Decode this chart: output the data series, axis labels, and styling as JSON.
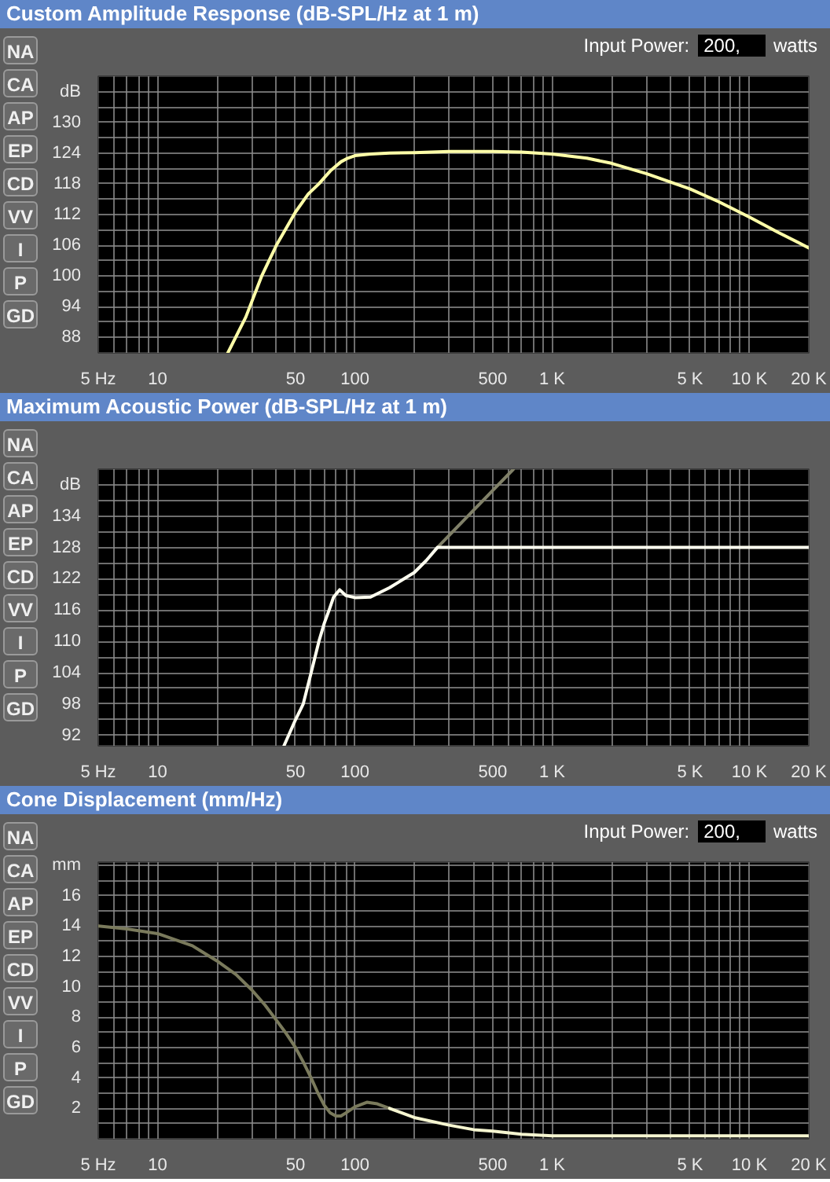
{
  "chart_data": [
    {
      "type": "line",
      "title": "Custom Amplitude Response (dB-SPL/Hz at 1 m)",
      "annotations": [
        "NA",
        "CA",
        "AP",
        "EP",
        "CD",
        "VV",
        "I",
        "P",
        "GD",
        "Input Power:",
        "200,",
        "watts"
      ],
      "series": [
        {
          "color": "#ffffa8",
          "x": [
            22.7,
            28,
            33.7,
            40,
            50,
            58,
            65.7,
            75,
            85,
            92,
            100,
            120,
            150,
            200,
            300,
            500,
            700,
            1000,
            1500,
            2000,
            3000,
            5000,
            7000,
            10000,
            14000,
            20000
          ],
          "values": [
            85,
            92,
            100,
            106,
            112.5,
            116,
            118,
            120.5,
            122.3,
            123,
            123.5,
            123.8,
            124,
            124.1,
            124.3,
            124.3,
            124.2,
            123.8,
            123,
            122,
            120,
            117,
            114.5,
            111.5,
            108.5,
            105.5
          ]
        }
      ],
      "xlim": [
        5,
        20000
      ],
      "ylim": [
        85,
        139
      ],
      "xticks": [
        {
          "value": 5,
          "label": "5 Hz"
        },
        {
          "value": 6,
          "label": null
        },
        {
          "value": 7,
          "label": null
        },
        {
          "value": 8,
          "label": null
        },
        {
          "value": 9,
          "label": null
        },
        10,
        {
          "value": 20,
          "label": null
        },
        {
          "value": 30,
          "label": null
        },
        {
          "value": 40,
          "label": null
        },
        50,
        {
          "value": 60,
          "label": null
        },
        {
          "value": 70,
          "label": null
        },
        {
          "value": 80,
          "label": null
        },
        {
          "value": 90,
          "label": null
        },
        100,
        {
          "value": 200,
          "label": null
        },
        {
          "value": 300,
          "label": null
        },
        {
          "value": 400,
          "label": null
        },
        500,
        {
          "value": 600,
          "label": null
        },
        {
          "value": 700,
          "label": null
        },
        {
          "value": 800,
          "label": null
        },
        {
          "value": 900,
          "label": null
        },
        {
          "value": 1000,
          "label": "1 K"
        },
        {
          "value": 2000,
          "label": null
        },
        {
          "value": 3000,
          "label": null
        },
        {
          "value": 4000,
          "label": null
        },
        {
          "value": 5000,
          "label": "5 K"
        },
        {
          "value": 6000,
          "label": null
        },
        {
          "value": 7000,
          "label": null
        },
        {
          "value": 8000,
          "label": null
        },
        {
          "value": 9000,
          "label": null
        },
        {
          "value": 10000,
          "label": "10 K"
        },
        {
          "value": 20000,
          "label": "20 K"
        }
      ],
      "yticks": [
        88,
        {
          "value": 91,
          "label": null
        },
        94,
        {
          "value": 97,
          "label": null
        },
        100,
        {
          "value": 103,
          "label": null
        },
        106,
        {
          "value": 109,
          "label": null
        },
        112,
        {
          "value": 115,
          "label": null
        },
        118,
        {
          "value": 121,
          "label": null
        },
        124,
        {
          "value": 127,
          "label": null
        },
        130,
        {
          "value": 133,
          "label": null
        },
        {
          "value": 136,
          "label": "dB"
        }
      ],
      "log": "x",
      "grid": true
    },
    {
      "type": "line",
      "title": "Maximum Acoustic Power (dB-SPL/Hz at 1 m)",
      "annotations": [
        "NA",
        "CA",
        "AP",
        "EP",
        "CD",
        "VV",
        "I",
        "P",
        "GD"
      ],
      "series": [
        {
          "color": "#808068",
          "x": [
            262,
            636
          ],
          "values": [
            128,
            143
          ]
        },
        {
          "color": "#fffff0",
          "x": [
            43.7,
            50,
            54.7,
            60,
            65.7,
            70,
            74,
            78,
            83.7,
            90,
            100,
            120,
            150,
            200,
            230,
            262,
            500,
            1000,
            5000,
            20000
          ],
          "values": [
            90,
            95,
            98,
            104,
            110,
            113.5,
            116,
            118.5,
            119.9,
            118.8,
            118.4,
            118.5,
            120.3,
            123.2,
            125.5,
            128,
            128,
            128,
            128,
            128
          ]
        }
      ],
      "xlim": [
        5,
        20000
      ],
      "ylim": [
        90,
        143
      ],
      "xticks": [
        {
          "value": 5,
          "label": "5 Hz"
        },
        {
          "value": 6,
          "label": null
        },
        {
          "value": 7,
          "label": null
        },
        {
          "value": 8,
          "label": null
        },
        {
          "value": 9,
          "label": null
        },
        10,
        {
          "value": 20,
          "label": null
        },
        {
          "value": 30,
          "label": null
        },
        {
          "value": 40,
          "label": null
        },
        50,
        {
          "value": 60,
          "label": null
        },
        {
          "value": 70,
          "label": null
        },
        {
          "value": 80,
          "label": null
        },
        {
          "value": 90,
          "label": null
        },
        100,
        {
          "value": 200,
          "label": null
        },
        {
          "value": 300,
          "label": null
        },
        {
          "value": 400,
          "label": null
        },
        500,
        {
          "value": 600,
          "label": null
        },
        {
          "value": 700,
          "label": null
        },
        {
          "value": 800,
          "label": null
        },
        {
          "value": 900,
          "label": null
        },
        {
          "value": 1000,
          "label": "1 K"
        },
        {
          "value": 2000,
          "label": null
        },
        {
          "value": 3000,
          "label": null
        },
        {
          "value": 4000,
          "label": null
        },
        {
          "value": 5000,
          "label": "5 K"
        },
        {
          "value": 6000,
          "label": null
        },
        {
          "value": 7000,
          "label": null
        },
        {
          "value": 8000,
          "label": null
        },
        {
          "value": 9000,
          "label": null
        },
        {
          "value": 10000,
          "label": "10 K"
        },
        {
          "value": 20000,
          "label": "20 K"
        }
      ],
      "yticks": [
        92,
        {
          "value": 95,
          "label": null
        },
        98,
        {
          "value": 101,
          "label": null
        },
        104,
        {
          "value": 107,
          "label": null
        },
        110,
        {
          "value": 113,
          "label": null
        },
        116,
        {
          "value": 119,
          "label": null
        },
        122,
        {
          "value": 125,
          "label": null
        },
        128,
        {
          "value": 131,
          "label": null
        },
        134,
        {
          "value": 137,
          "label": null
        },
        {
          "value": 140,
          "label": "dB"
        }
      ],
      "log": "x",
      "grid": true
    },
    {
      "type": "line",
      "title": "Cone Displacement (mm/Hz)",
      "annotations": [
        "NA",
        "CA",
        "AP",
        "EP",
        "CD",
        "VV",
        "I",
        "P",
        "GD",
        "Input Power:",
        "200,",
        "watts"
      ],
      "series": [
        {
          "color": "#7a7a5c",
          "x": [
            5,
            7,
            10,
            15,
            20,
            25,
            30,
            35,
            40,
            45,
            50,
            55,
            60,
            65,
            70,
            75,
            80,
            85,
            90,
            100,
            115,
            130,
            150
          ],
          "values": [
            14,
            13.8,
            13.5,
            12.7,
            11.7,
            10.8,
            9.8,
            8.8,
            7.8,
            6.9,
            6,
            5,
            4,
            3,
            2.2,
            1.7,
            1.5,
            1.5,
            1.7,
            2.1,
            2.4,
            2.3,
            2
          ]
        },
        {
          "color": "#f5f5d0",
          "x": [
            150,
            200,
            300,
            400,
            500,
            700,
            1000,
            5000,
            20000
          ],
          "values": [
            2,
            1.4,
            0.9,
            0.6,
            0.5,
            0.3,
            0.2,
            0.2,
            0.2
          ]
        }
      ],
      "xlim": [
        5,
        20000
      ],
      "ylim": [
        0,
        18.2
      ],
      "xticks": [
        {
          "value": 5,
          "label": "5 Hz"
        },
        {
          "value": 6,
          "label": null
        },
        {
          "value": 7,
          "label": null
        },
        {
          "value": 8,
          "label": null
        },
        {
          "value": 9,
          "label": null
        },
        10,
        {
          "value": 20,
          "label": null
        },
        {
          "value": 30,
          "label": null
        },
        {
          "value": 40,
          "label": null
        },
        50,
        {
          "value": 60,
          "label": null
        },
        {
          "value": 70,
          "label": null
        },
        {
          "value": 80,
          "label": null
        },
        {
          "value": 90,
          "label": null
        },
        100,
        {
          "value": 200,
          "label": null
        },
        {
          "value": 300,
          "label": null
        },
        {
          "value": 400,
          "label": null
        },
        500,
        {
          "value": 600,
          "label": null
        },
        {
          "value": 700,
          "label": null
        },
        {
          "value": 800,
          "label": null
        },
        {
          "value": 900,
          "label": null
        },
        {
          "value": 1000,
          "label": "1 K"
        },
        {
          "value": 2000,
          "label": null
        },
        {
          "value": 3000,
          "label": null
        },
        {
          "value": 4000,
          "label": null
        },
        {
          "value": 5000,
          "label": "5 K"
        },
        {
          "value": 6000,
          "label": null
        },
        {
          "value": 7000,
          "label": null
        },
        {
          "value": 8000,
          "label": null
        },
        {
          "value": 9000,
          "label": null
        },
        {
          "value": 10000,
          "label": "10 K"
        },
        {
          "value": 20000,
          "label": "20 K"
        }
      ],
      "yticks": [
        {
          "value": 1,
          "label": null
        },
        2,
        {
          "value": 3,
          "label": null
        },
        4,
        {
          "value": 5,
          "label": null
        },
        6,
        {
          "value": 7,
          "label": null
        },
        8,
        {
          "value": 9,
          "label": null
        },
        10,
        {
          "value": 11,
          "label": null
        },
        12,
        {
          "value": 13,
          "label": null
        },
        14,
        {
          "value": 15,
          "label": null
        },
        16,
        {
          "value": 17,
          "label": null
        },
        {
          "value": 18,
          "label": "mm"
        }
      ],
      "log": "x",
      "grid": true
    }
  ]
}
